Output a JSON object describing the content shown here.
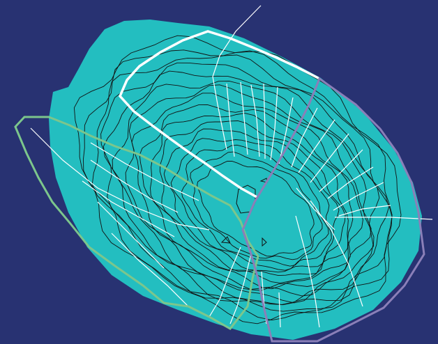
{
  "map": {
    "background_color": "#283272",
    "landmass_color": "#23bec0",
    "contour_color": "#111111",
    "flow_line_color": "#ffffff",
    "regions": [
      {
        "id": "north",
        "outline_color": "#ffffff"
      },
      {
        "id": "west",
        "outline_color": "#7cc68c"
      },
      {
        "id": "east",
        "outline_color": "#8a7fb8"
      }
    ],
    "contour_count": 16
  }
}
